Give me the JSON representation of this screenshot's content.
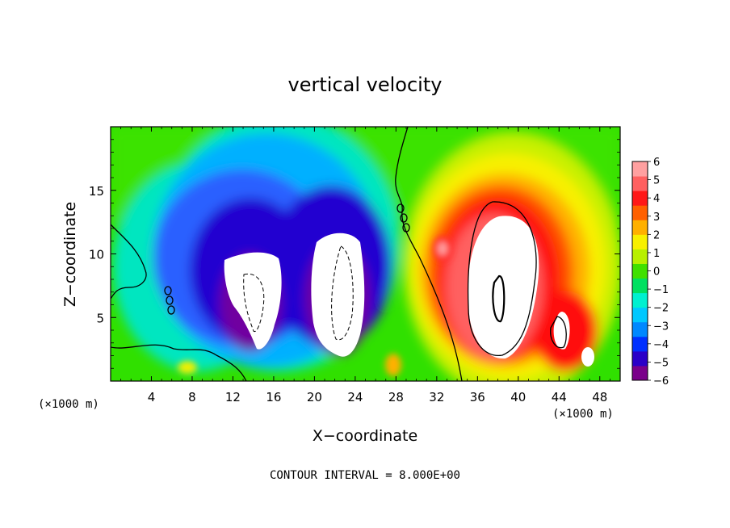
{
  "chart_data": {
    "type": "heatmap",
    "title": "vertical velocity",
    "xlabel": "X−coordinate",
    "ylabel": "Z−coordinate",
    "x_unit_label_left": "(×1000 m)",
    "x_unit_label_right": "(×1000 m)",
    "footer": "CONTOUR INTERVAL = 8.000E+00",
    "xlim": [
      0,
      50
    ],
    "ylim": [
      0,
      20
    ],
    "x_ticks": [
      4,
      8,
      12,
      16,
      20,
      24,
      28,
      32,
      36,
      40,
      44,
      48
    ],
    "y_ticks": [
      5,
      10,
      15
    ],
    "colorbar": {
      "levels": [
        "6",
        "5",
        "4",
        "3",
        "2",
        "1",
        "0",
        "−1",
        "−2",
        "−3",
        "−4",
        "−5",
        "−6"
      ],
      "range": [
        -6,
        6
      ],
      "colors": [
        "#7a008a",
        "#2a00c8",
        "#0030ff",
        "#0088ff",
        "#00c8ff",
        "#00f0d0",
        "#00e060",
        "#40e000",
        "#b8f000",
        "#f8f000",
        "#ffb000",
        "#ff6000",
        "#ff1818",
        "#ff6060",
        "#ffa0a0"
      ]
    },
    "features": [
      {
        "type": "downdraft",
        "center_x": 14.5,
        "center_z": 7.5,
        "w_min_below": -6
      },
      {
        "type": "downdraft",
        "center_x": 22.5,
        "center_z": 8.5,
        "w_min_below": -6
      },
      {
        "type": "updraft",
        "center_x": 38.5,
        "center_z": 7.5,
        "w_max_above": 6
      },
      {
        "type": "updraft",
        "center_x": 44.5,
        "center_z": 3.5,
        "w_max_above": 6
      }
    ]
  }
}
